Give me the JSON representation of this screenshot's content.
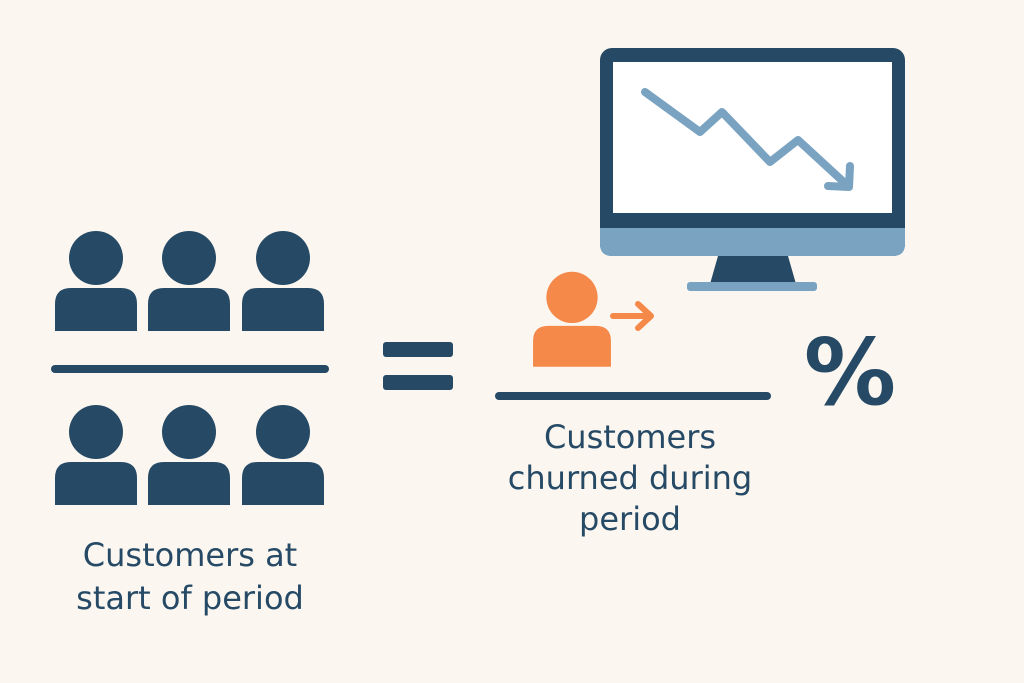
{
  "formula": {
    "denominator_label": [
      "Customers at",
      "start of period"
    ],
    "numerator_label": [
      "Customers",
      "churned during",
      "period"
    ],
    "result_symbol": "%"
  }
}
